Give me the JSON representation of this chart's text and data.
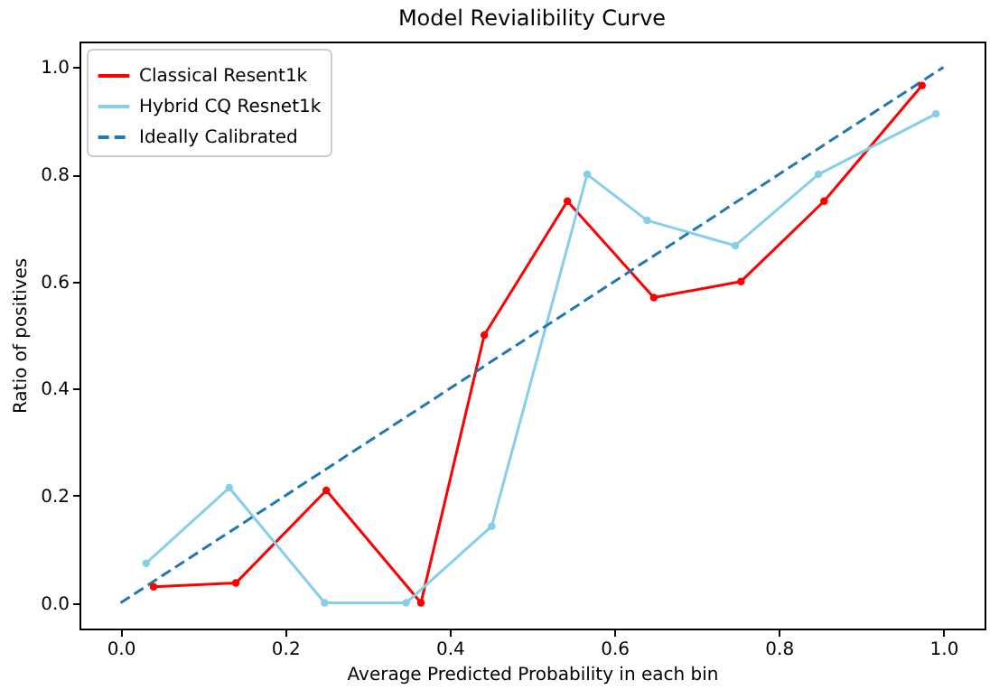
{
  "chart_data": {
    "type": "line",
    "title": "Model Revialibility Curve",
    "xlabel": "Average Predicted Probability in each bin",
    "ylabel": "Ratio of positives",
    "xlim": [
      -0.05,
      1.05
    ],
    "ylim": [
      -0.048,
      1.048
    ],
    "xticks": [
      {
        "value": 0,
        "label": "0.0"
      },
      {
        "value": 0.2,
        "label": "0.2"
      },
      {
        "value": 0.4,
        "label": "0.4"
      },
      {
        "value": 0.6,
        "label": "0.6"
      },
      {
        "value": 0.8,
        "label": "0.8"
      },
      {
        "value": 1,
        "label": "1.0"
      }
    ],
    "yticks": [
      {
        "value": 0,
        "label": "0.0"
      },
      {
        "value": 0.2,
        "label": "0.2"
      },
      {
        "value": 0.4,
        "label": "0.4"
      },
      {
        "value": 0.6,
        "label": "0.6"
      },
      {
        "value": 0.8,
        "label": "0.8"
      },
      {
        "value": 1,
        "label": "1.0"
      }
    ],
    "grid": false,
    "legend": "top left",
    "marker": "circle",
    "line_style": "solid",
    "series": [
      {
        "name": "Classical Resent1k",
        "color": "#ff0000",
        "x": [
          0.04,
          0.14,
          0.25,
          0.365,
          0.442,
          0.543,
          0.648,
          0.754,
          0.855,
          0.974
        ],
        "values": [
          0.03,
          0.037,
          0.21,
          0.0,
          0.5,
          0.75,
          0.57,
          0.6,
          0.75,
          0.966
        ]
      },
      {
        "name": "Hybrid CQ Resnet1k",
        "color": "#87ceeb",
        "x": [
          0.031,
          0.132,
          0.248,
          0.347,
          0.451,
          0.567,
          0.64,
          0.747,
          0.848,
          0.991
        ],
        "values": [
          0.074,
          0.215,
          0.0,
          0.0,
          0.143,
          0.8,
          0.714,
          0.667,
          0.8,
          0.913
        ]
      },
      {
        "name": "Ideally Calibrated",
        "color": "#1f77b4",
        "marker": "none",
        "line_style": "dashed",
        "x": [
          0,
          1
        ],
        "values": [
          0,
          1
        ]
      }
    ]
  }
}
